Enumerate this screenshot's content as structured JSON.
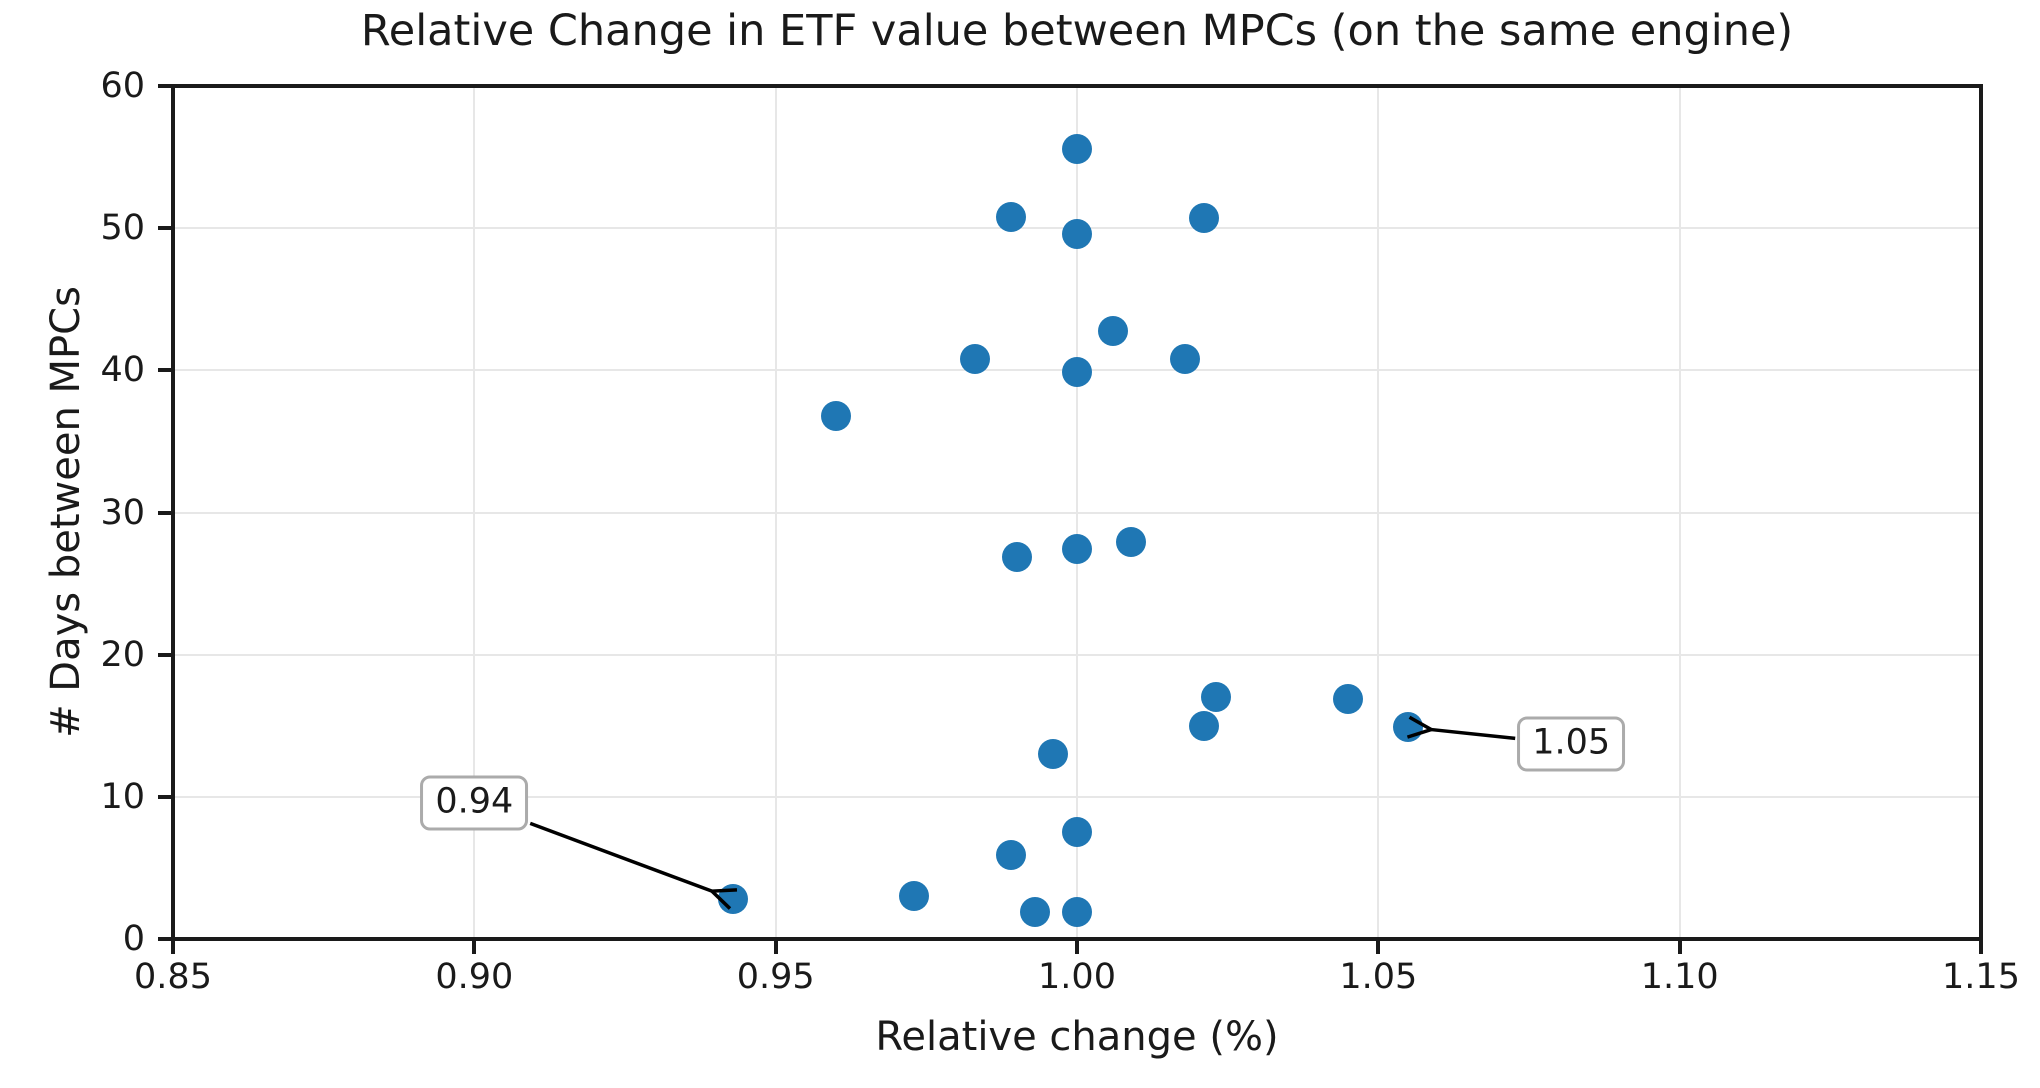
{
  "chart_data": {
    "type": "scatter",
    "title": "Relative Change in ETF value between MPCs (on the same engine)",
    "xlabel": "Relative change (%)",
    "ylabel": "# Days between MPCs",
    "xlim": [
      0.85,
      1.15
    ],
    "ylim": [
      0,
      60
    ],
    "x_ticks": [
      0.85,
      0.9,
      0.95,
      1.0,
      1.05,
      1.1,
      1.15
    ],
    "x_tick_labels": [
      "0.85",
      "0.90",
      "0.95",
      "1.00",
      "1.05",
      "1.10",
      "1.15"
    ],
    "y_ticks": [
      0,
      10,
      20,
      30,
      40,
      50,
      60
    ],
    "y_tick_labels": [
      "0",
      "10",
      "20",
      "30",
      "40",
      "50",
      "60"
    ],
    "grid": true,
    "legend": "none",
    "marker_color": "#1f77b4",
    "grid_color": "#e7e7e7",
    "axis_color": "#1a1a1a",
    "points": [
      [
        1.0,
        55.6
      ],
      [
        0.989,
        50.8
      ],
      [
        1.0,
        49.6
      ],
      [
        1.021,
        50.7
      ],
      [
        1.006,
        42.8
      ],
      [
        0.983,
        40.8
      ],
      [
        1.0,
        39.9
      ],
      [
        1.018,
        40.8
      ],
      [
        0.96,
        36.8
      ],
      [
        0.99,
        26.9
      ],
      [
        1.0,
        27.4
      ],
      [
        1.009,
        27.9
      ],
      [
        1.023,
        17.0
      ],
      [
        1.021,
        15.0
      ],
      [
        1.045,
        16.9
      ],
      [
        1.055,
        14.9
      ],
      [
        0.996,
        13.0
      ],
      [
        0.989,
        5.9
      ],
      [
        1.0,
        7.5
      ],
      [
        0.993,
        1.9
      ],
      [
        1.0,
        1.9
      ],
      [
        0.973,
        3.0
      ],
      [
        0.943,
        2.8
      ]
    ],
    "annotations": [
      {
        "label": "0.94",
        "point": [
          0.943,
          2.8
        ],
        "box_center": [
          0.9,
          9.6
        ]
      },
      {
        "label": "1.05",
        "point": [
          1.055,
          14.9
        ],
        "box_center": [
          1.082,
          13.7
        ]
      }
    ]
  }
}
